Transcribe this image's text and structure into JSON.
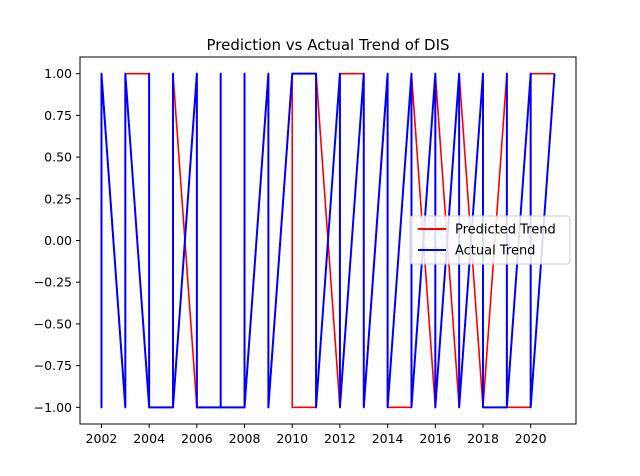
{
  "chart_data": {
    "type": "line",
    "title": "Prediction vs Actual Trend of DIS",
    "xlabel": "",
    "ylabel": "",
    "xlim": [
      2001.1,
      2021.9
    ],
    "ylim": [
      -1.1,
      1.1
    ],
    "x_ticks": [
      2002,
      2004,
      2006,
      2008,
      2010,
      2012,
      2014,
      2016,
      2018,
      2020
    ],
    "y_ticks": [
      1.0,
      0.75,
      0.5,
      0.25,
      0.0,
      -0.25,
      -0.5,
      -0.75,
      -1.0
    ],
    "y_tick_labels": [
      "1.00",
      "0.75",
      "0.50",
      "0.25",
      "0.00",
      "−0.25",
      "−0.50",
      "−0.75",
      "−1.00"
    ],
    "grid": false,
    "legend_position": "center-right",
    "series": [
      {
        "name": "Predicted Trend",
        "color": "#ff0000",
        "points": [
          [
            2002,
            1
          ],
          [
            2002,
            -1
          ],
          [
            2002,
            1
          ],
          [
            2003,
            -1
          ],
          [
            2003,
            1
          ],
          [
            2004,
            1
          ],
          [
            2004,
            -1
          ],
          [
            2004,
            1
          ],
          [
            2004,
            -1
          ],
          [
            2005,
            -1
          ],
          [
            2005,
            1
          ],
          [
            2006,
            -1
          ],
          [
            2006,
            1
          ],
          [
            2006,
            -1
          ],
          [
            2007,
            -1
          ],
          [
            2007,
            1
          ],
          [
            2007,
            -1
          ],
          [
            2008,
            -1
          ],
          [
            2008,
            1
          ],
          [
            2008,
            -1
          ],
          [
            2009,
            1
          ],
          [
            2009,
            -1
          ],
          [
            2010,
            1
          ],
          [
            2010,
            -1
          ],
          [
            2011,
            -1
          ],
          [
            2011,
            1
          ],
          [
            2012,
            -1
          ],
          [
            2012,
            1
          ],
          [
            2013,
            1
          ],
          [
            2013,
            -1
          ],
          [
            2014,
            1
          ],
          [
            2014,
            -1
          ],
          [
            2015,
            -1
          ],
          [
            2015,
            1
          ],
          [
            2016,
            -1
          ],
          [
            2016,
            1
          ],
          [
            2017,
            -1
          ],
          [
            2017,
            1
          ],
          [
            2018,
            -1
          ],
          [
            2019,
            1
          ],
          [
            2019,
            -1
          ],
          [
            2020,
            -1
          ],
          [
            2020,
            1
          ],
          [
            2021,
            1
          ]
        ]
      },
      {
        "name": "Actual Trend",
        "color": "#0000ff",
        "points": [
          [
            2002,
            1
          ],
          [
            2002,
            -1
          ],
          [
            2002,
            1
          ],
          [
            2003,
            -1
          ],
          [
            2003,
            1
          ],
          [
            2004,
            -1
          ],
          [
            2004,
            1
          ],
          [
            2004,
            -1
          ],
          [
            2005,
            -1
          ],
          [
            2005,
            1
          ],
          [
            2005,
            -1
          ],
          [
            2006,
            1
          ],
          [
            2006,
            -1
          ],
          [
            2006,
            1
          ],
          [
            2006,
            -1
          ],
          [
            2007,
            -1
          ],
          [
            2007,
            1
          ],
          [
            2007,
            -1
          ],
          [
            2008,
            -1
          ],
          [
            2008,
            1
          ],
          [
            2008,
            -1
          ],
          [
            2009,
            1
          ],
          [
            2009,
            -1
          ],
          [
            2010,
            1
          ],
          [
            2011,
            1
          ],
          [
            2011,
            -1
          ],
          [
            2012,
            1
          ],
          [
            2012,
            -1
          ],
          [
            2013,
            1
          ],
          [
            2013,
            -1
          ],
          [
            2014,
            1
          ],
          [
            2014,
            -1
          ],
          [
            2015,
            1
          ],
          [
            2015,
            -1
          ],
          [
            2016,
            1
          ],
          [
            2016,
            -1
          ],
          [
            2017,
            1
          ],
          [
            2017,
            -1
          ],
          [
            2018,
            1
          ],
          [
            2018,
            -1
          ],
          [
            2019,
            -1
          ],
          [
            2019,
            1
          ],
          [
            2019,
            -1
          ],
          [
            2020,
            1
          ],
          [
            2020,
            -1
          ],
          [
            2021,
            1
          ]
        ]
      }
    ]
  }
}
